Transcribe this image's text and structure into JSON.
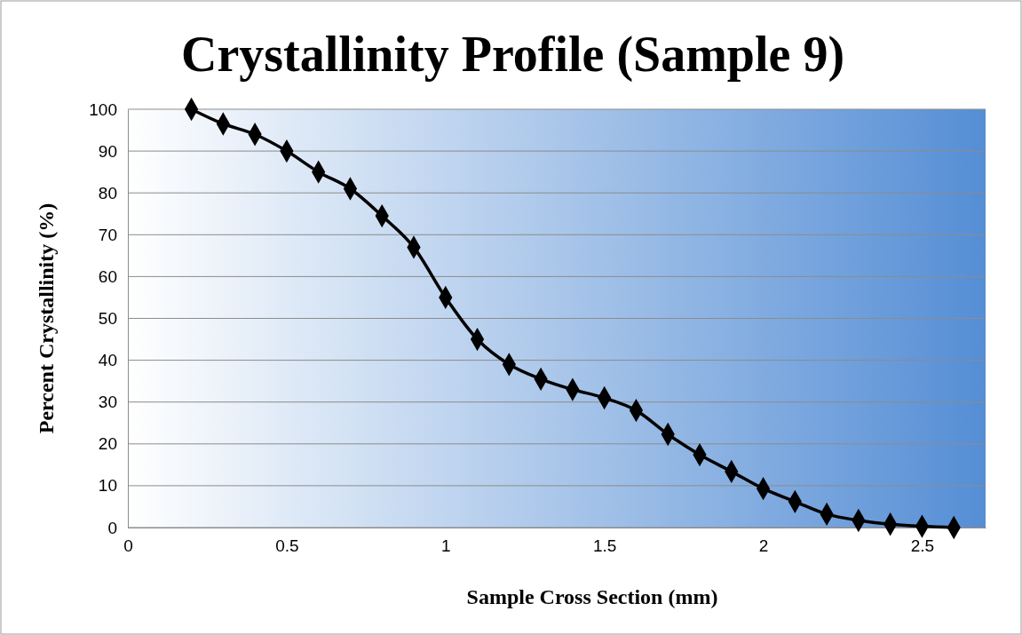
{
  "chart_data": {
    "type": "line",
    "title": "Crystallinity Profile (Sample 9)",
    "xlabel": "Sample Cross Section (mm)",
    "ylabel": "Percent Crystallinity (%)",
    "x": [
      0.2,
      0.3,
      0.4,
      0.5,
      0.6,
      0.7,
      0.8,
      0.9,
      1.0,
      1.1,
      1.2,
      1.3,
      1.4,
      1.5,
      1.6,
      1.7,
      1.8,
      1.9,
      2.0,
      2.1,
      2.2,
      2.3,
      2.4,
      2.5,
      2.6
    ],
    "series": [
      {
        "color": "#000000",
        "values": [
          100,
          96.5,
          94,
          90,
          85,
          81,
          74.5,
          67,
          55,
          45,
          39,
          35.5,
          33,
          31,
          28,
          22.3,
          17.4,
          13.4,
          9.3,
          6.2,
          3.2,
          1.7,
          0.8,
          0.3,
          0
        ]
      }
    ],
    "xlim": [
      0,
      2.7
    ],
    "xticks": [
      0,
      0.5,
      1,
      1.5,
      2,
      2.5
    ],
    "ylim": [
      0,
      100
    ],
    "yticks": [
      0,
      10,
      20,
      30,
      40,
      50,
      60,
      70,
      80,
      90,
      100
    ],
    "grid": "y",
    "marker": "diamond",
    "line_style": "solid"
  }
}
